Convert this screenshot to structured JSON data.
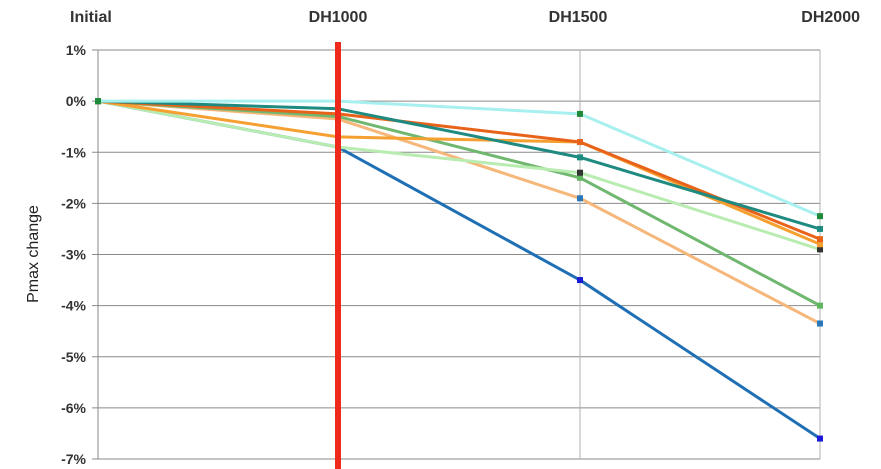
{
  "chart_data": {
    "type": "line",
    "title": "",
    "xlabel": "",
    "ylabel": "Pmax change",
    "categories": [
      "Initial",
      "DH1000",
      "DH1500",
      "DH2000"
    ],
    "y_ticks": [
      "1%",
      "0%",
      "-1%",
      "-2%",
      "-3%",
      "-4%",
      "-5%",
      "-6%",
      "-7%"
    ],
    "ylim": [
      -7,
      1
    ],
    "grid": true,
    "legend": "none",
    "series": [
      {
        "color": "#1f6fb5",
        "marker": "#1a1ad6",
        "values": [
          0,
          -0.9,
          -3.5,
          -6.6
        ]
      },
      {
        "color": "#f5b77a",
        "marker": "#2b78b8",
        "values": [
          0,
          -0.35,
          -1.9,
          -4.35
        ]
      },
      {
        "color": "#70b870",
        "marker": "#5fb85f",
        "values": [
          0,
          -0.3,
          -1.5,
          -4.0
        ]
      },
      {
        "color": "#b8ecb0",
        "marker": "#333333",
        "values": [
          0,
          -0.9,
          -1.4,
          -2.9
        ]
      },
      {
        "color": "#f5a030",
        "marker": "#f5a030",
        "values": [
          0,
          -0.7,
          -0.8,
          -2.8
        ]
      },
      {
        "color": "#e8621a",
        "marker": "#e8621a",
        "values": [
          0,
          -0.25,
          -0.8,
          -2.7
        ]
      },
      {
        "color": "#1e8a80",
        "marker": "#1e8a80",
        "values": [
          0,
          -0.15,
          -1.1,
          -2.5
        ]
      },
      {
        "color": "#a8f0f0",
        "marker": "#1e8a3a",
        "values": [
          0,
          0.0,
          -0.25,
          -2.25
        ]
      }
    ],
    "highlight_line": {
      "category": "DH1000",
      "color": "#ee2a1a"
    }
  }
}
